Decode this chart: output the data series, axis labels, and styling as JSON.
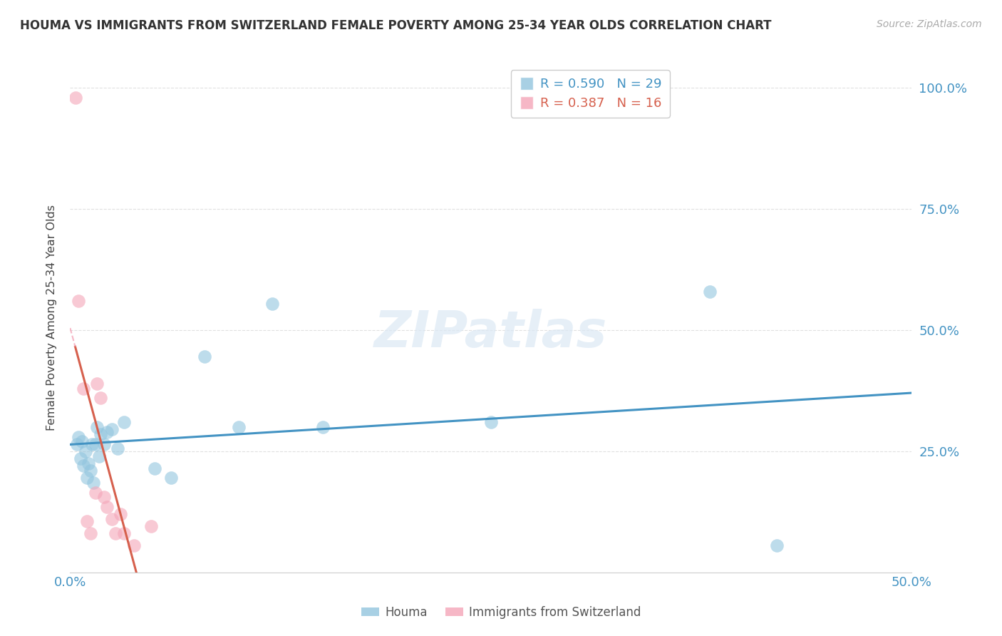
{
  "title": "HOUMA VS IMMIGRANTS FROM SWITZERLAND FEMALE POVERTY AMONG 25-34 YEAR OLDS CORRELATION CHART",
  "source": "Source: ZipAtlas.com",
  "ylabel": "Female Poverty Among 25-34 Year Olds",
  "xlim": [
    0.0,
    0.5
  ],
  "ylim": [
    0.0,
    1.05
  ],
  "xticks": [
    0.0,
    0.1,
    0.2,
    0.3,
    0.4,
    0.5
  ],
  "xticklabels": [
    "0.0%",
    "",
    "",
    "",
    "",
    "50.0%"
  ],
  "yticks": [
    0.25,
    0.5,
    0.75,
    1.0
  ],
  "yticklabels": [
    "25.0%",
    "50.0%",
    "75.0%",
    "100.0%"
  ],
  "houma_R": 0.59,
  "houma_N": 29,
  "swiss_R": 0.387,
  "swiss_N": 16,
  "houma_color": "#92c5de",
  "swiss_color": "#f4a5b8",
  "houma_line_color": "#4393c3",
  "swiss_solid_color": "#d6604d",
  "swiss_dash_color": "#f4a5b8",
  "tick_color": "#4393c3",
  "watermark": "ZIPatlas",
  "houma_x": [
    0.004,
    0.005,
    0.006,
    0.007,
    0.008,
    0.009,
    0.01,
    0.011,
    0.012,
    0.013,
    0.014,
    0.015,
    0.016,
    0.017,
    0.018,
    0.02,
    0.022,
    0.025,
    0.028,
    0.032,
    0.05,
    0.06,
    0.08,
    0.1,
    0.12,
    0.15,
    0.25,
    0.38,
    0.42
  ],
  "houma_y": [
    0.265,
    0.28,
    0.235,
    0.27,
    0.22,
    0.25,
    0.195,
    0.225,
    0.21,
    0.265,
    0.185,
    0.265,
    0.3,
    0.24,
    0.285,
    0.265,
    0.29,
    0.295,
    0.255,
    0.31,
    0.215,
    0.195,
    0.445,
    0.3,
    0.555,
    0.3,
    0.31,
    0.58,
    0.055
  ],
  "swiss_x": [
    0.003,
    0.005,
    0.008,
    0.01,
    0.012,
    0.015,
    0.016,
    0.018,
    0.02,
    0.022,
    0.025,
    0.027,
    0.03,
    0.032,
    0.038,
    0.048
  ],
  "swiss_y": [
    0.98,
    0.56,
    0.38,
    0.105,
    0.08,
    0.165,
    0.39,
    0.36,
    0.155,
    0.135,
    0.11,
    0.08,
    0.12,
    0.08,
    0.055,
    0.095
  ],
  "background_color": "#ffffff",
  "grid_color": "#e0e0e0"
}
